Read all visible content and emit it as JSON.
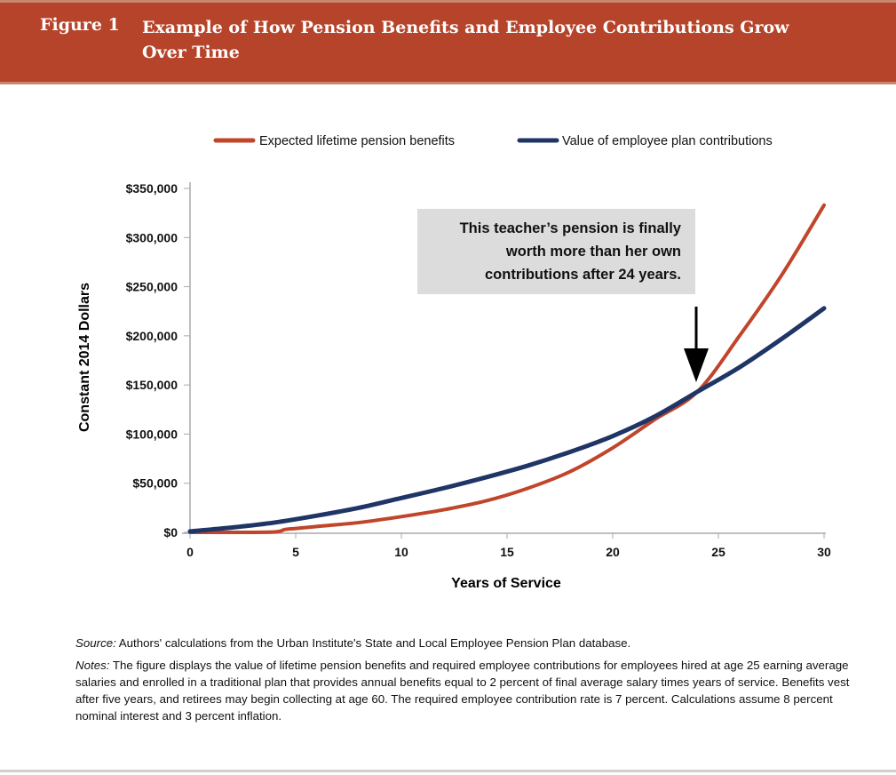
{
  "header": {
    "figure_label": "Figure 1",
    "title": "Example of How Pension Benefits and  Employee Contributions Grow Over Time"
  },
  "colors": {
    "banner": "#b5442a",
    "benefits": "#c0452a",
    "contributions": "#1f3566",
    "annotation_bg": "#dcdcdc"
  },
  "chart_data": {
    "type": "line",
    "xlabel": "Years of Service",
    "ylabel": "Constant 2014 Dollars",
    "xlim": [
      0,
      30
    ],
    "ylim": [
      0,
      350000
    ],
    "x_ticks": [
      "0",
      "5",
      "10",
      "15",
      "20",
      "25",
      "30"
    ],
    "y_ticks": [
      "$0",
      "$50,000",
      "$100,000",
      "$150,000",
      "$200,000",
      "$250,000",
      "$300,000",
      "$350,000"
    ],
    "grid": false,
    "legend_position": "top",
    "series": [
      {
        "name": "Expected lifetime pension benefits",
        "color": "#c0452a",
        "x": [
          0,
          2,
          4,
          4.5,
          5,
          6,
          8,
          10,
          12,
          14,
          16,
          18,
          20,
          22,
          24,
          26,
          28,
          30
        ],
        "y": [
          0,
          0,
          500,
          3000,
          4000,
          6000,
          10000,
          16000,
          23000,
          32000,
          45000,
          62000,
          86000,
          115000,
          143000,
          200000,
          262000,
          333000
        ]
      },
      {
        "name": "Value of employee plan contributions",
        "color": "#1f3566",
        "x": [
          0,
          2,
          4,
          6,
          8,
          10,
          12,
          14,
          16,
          18,
          20,
          22,
          24,
          26,
          28,
          30
        ],
        "y": [
          1000,
          5000,
          10000,
          17000,
          25000,
          35000,
          45000,
          56000,
          68000,
          82000,
          98000,
          118000,
          143000,
          168000,
          197000,
          228000
        ]
      }
    ],
    "annotation": {
      "text": [
        "This teacher’s pension is finally",
        "worth more than her own",
        "contributions after 24 years."
      ],
      "points_to_x": 24
    }
  },
  "notes": {
    "source_label": "Source:",
    "source_text": " Authors' calculations from the Urban Institute's State and Local Employee Pension Plan database.",
    "notes_label": "Notes:",
    "notes_text": " The figure displays the value of lifetime pension benefits and required employee contributions for employees hired at age 25 earning average salaries and enrolled in a traditional plan that provides annual benefits equal to 2 percent of final average salary times years of service. Benefits vest after five years, and retirees may begin collecting at age 60. The required employee contribution rate is 7 percent. Calculations assume 8 percent nominal interest and 3 percent inflation."
  }
}
